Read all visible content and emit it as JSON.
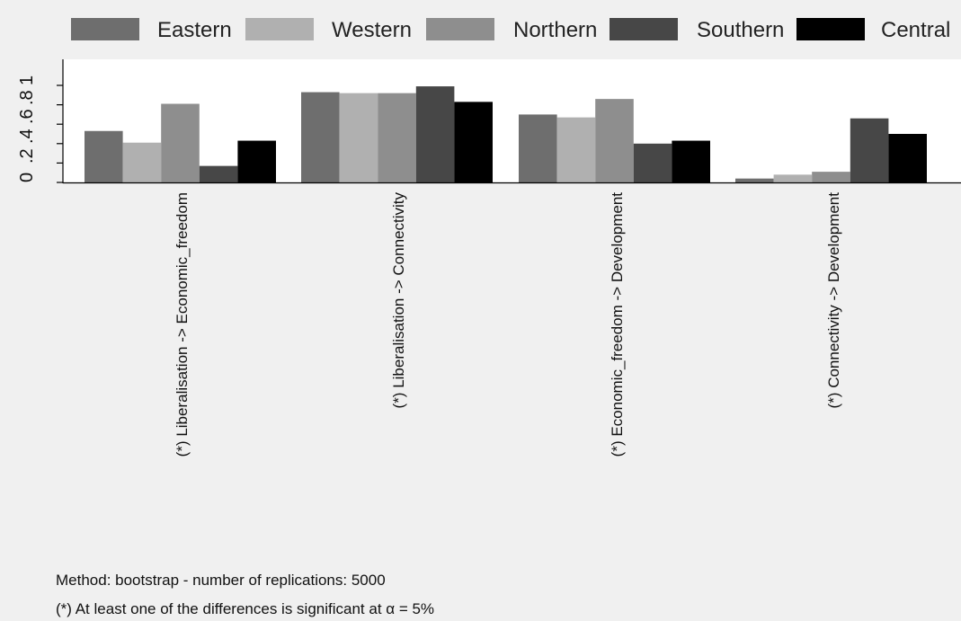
{
  "chart_data": {
    "type": "bar",
    "categories": [
      "(*) Liberalisation -> Economic_freedom",
      "(*) Liberalisation -> Connectivity",
      "(*) Economic_freedom -> Development",
      "(*) Connectivity -> Development"
    ],
    "series": [
      {
        "name": "Eastern",
        "color": "#6e6e6e",
        "values": [
          0.53,
          0.93,
          0.7,
          0.04
        ]
      },
      {
        "name": "Western",
        "color": "#b0b0b0",
        "values": [
          0.41,
          0.92,
          0.67,
          0.08
        ]
      },
      {
        "name": "Northern",
        "color": "#8e8e8e",
        "values": [
          0.81,
          0.92,
          0.86,
          0.11
        ]
      },
      {
        "name": "Southern",
        "color": "#474747",
        "values": [
          0.17,
          0.99,
          0.4,
          0.66
        ]
      },
      {
        "name": "Central",
        "color": "#000000",
        "values": [
          0.43,
          0.83,
          0.43,
          0.5
        ]
      }
    ],
    "y_ticks": [
      "0",
      ".2",
      ".4",
      ".6",
      ".8",
      "1"
    ],
    "ylim": [
      0,
      1.2
    ],
    "grid": false,
    "legend_position": "top"
  },
  "notes": {
    "method": "Method: bootstrap - number of replications: 5000",
    "significance": "(*) At least one of the differences is significant at α = 5%"
  }
}
